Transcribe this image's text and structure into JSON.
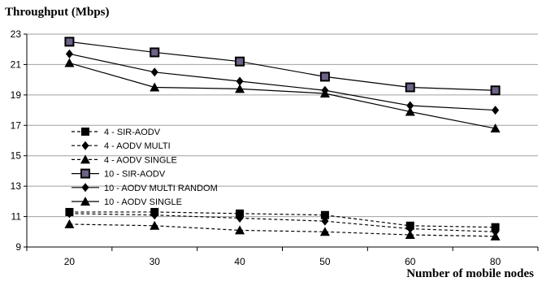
{
  "chart_data": {
    "type": "line",
    "title": "",
    "ylabel": "Throughput (Mbps)",
    "xlabel": "Number of mobile nodes",
    "categories": [
      "20",
      "30",
      "40",
      "50",
      "60",
      "80"
    ],
    "ylim": [
      9,
      23
    ],
    "yticks": [
      "9",
      "11",
      "13",
      "15",
      "17",
      "19",
      "21",
      "23"
    ],
    "grid": true,
    "legend_position": "left",
    "series": [
      {
        "name": "4 - SIR-AODV",
        "values": [
          11.3,
          11.3,
          11.2,
          11.1,
          10.4,
          10.3
        ],
        "marker": "square-filled",
        "dash": "dashed"
      },
      {
        "name": "4 - AODV MULTI",
        "values": [
          11.2,
          11.1,
          10.9,
          10.7,
          10.2,
          10.0
        ],
        "marker": "diamond",
        "dash": "dashed"
      },
      {
        "name": "4 - AODV SINGLE",
        "values": [
          10.5,
          10.4,
          10.1,
          10.0,
          9.8,
          9.7
        ],
        "marker": "triangle",
        "dash": "dashed"
      },
      {
        "name": "10 - SIR-AODV",
        "values": [
          22.5,
          21.8,
          21.2,
          20.2,
          19.5,
          19.3
        ],
        "marker": "square-outlined",
        "dash": "solid"
      },
      {
        "name": "10 - AODV MULTI RANDOM",
        "values": [
          21.7,
          20.5,
          19.9,
          19.3,
          18.3,
          18.0
        ],
        "marker": "diamond",
        "dash": "solid"
      },
      {
        "name": "10 - AODV SINGLE",
        "values": [
          21.1,
          19.5,
          19.4,
          19.1,
          17.9,
          16.8
        ],
        "marker": "triangle",
        "dash": "solid"
      }
    ],
    "colors": {
      "line": "#000000",
      "grid": "#a0a0a0",
      "square_fill": "#6e6288"
    }
  }
}
